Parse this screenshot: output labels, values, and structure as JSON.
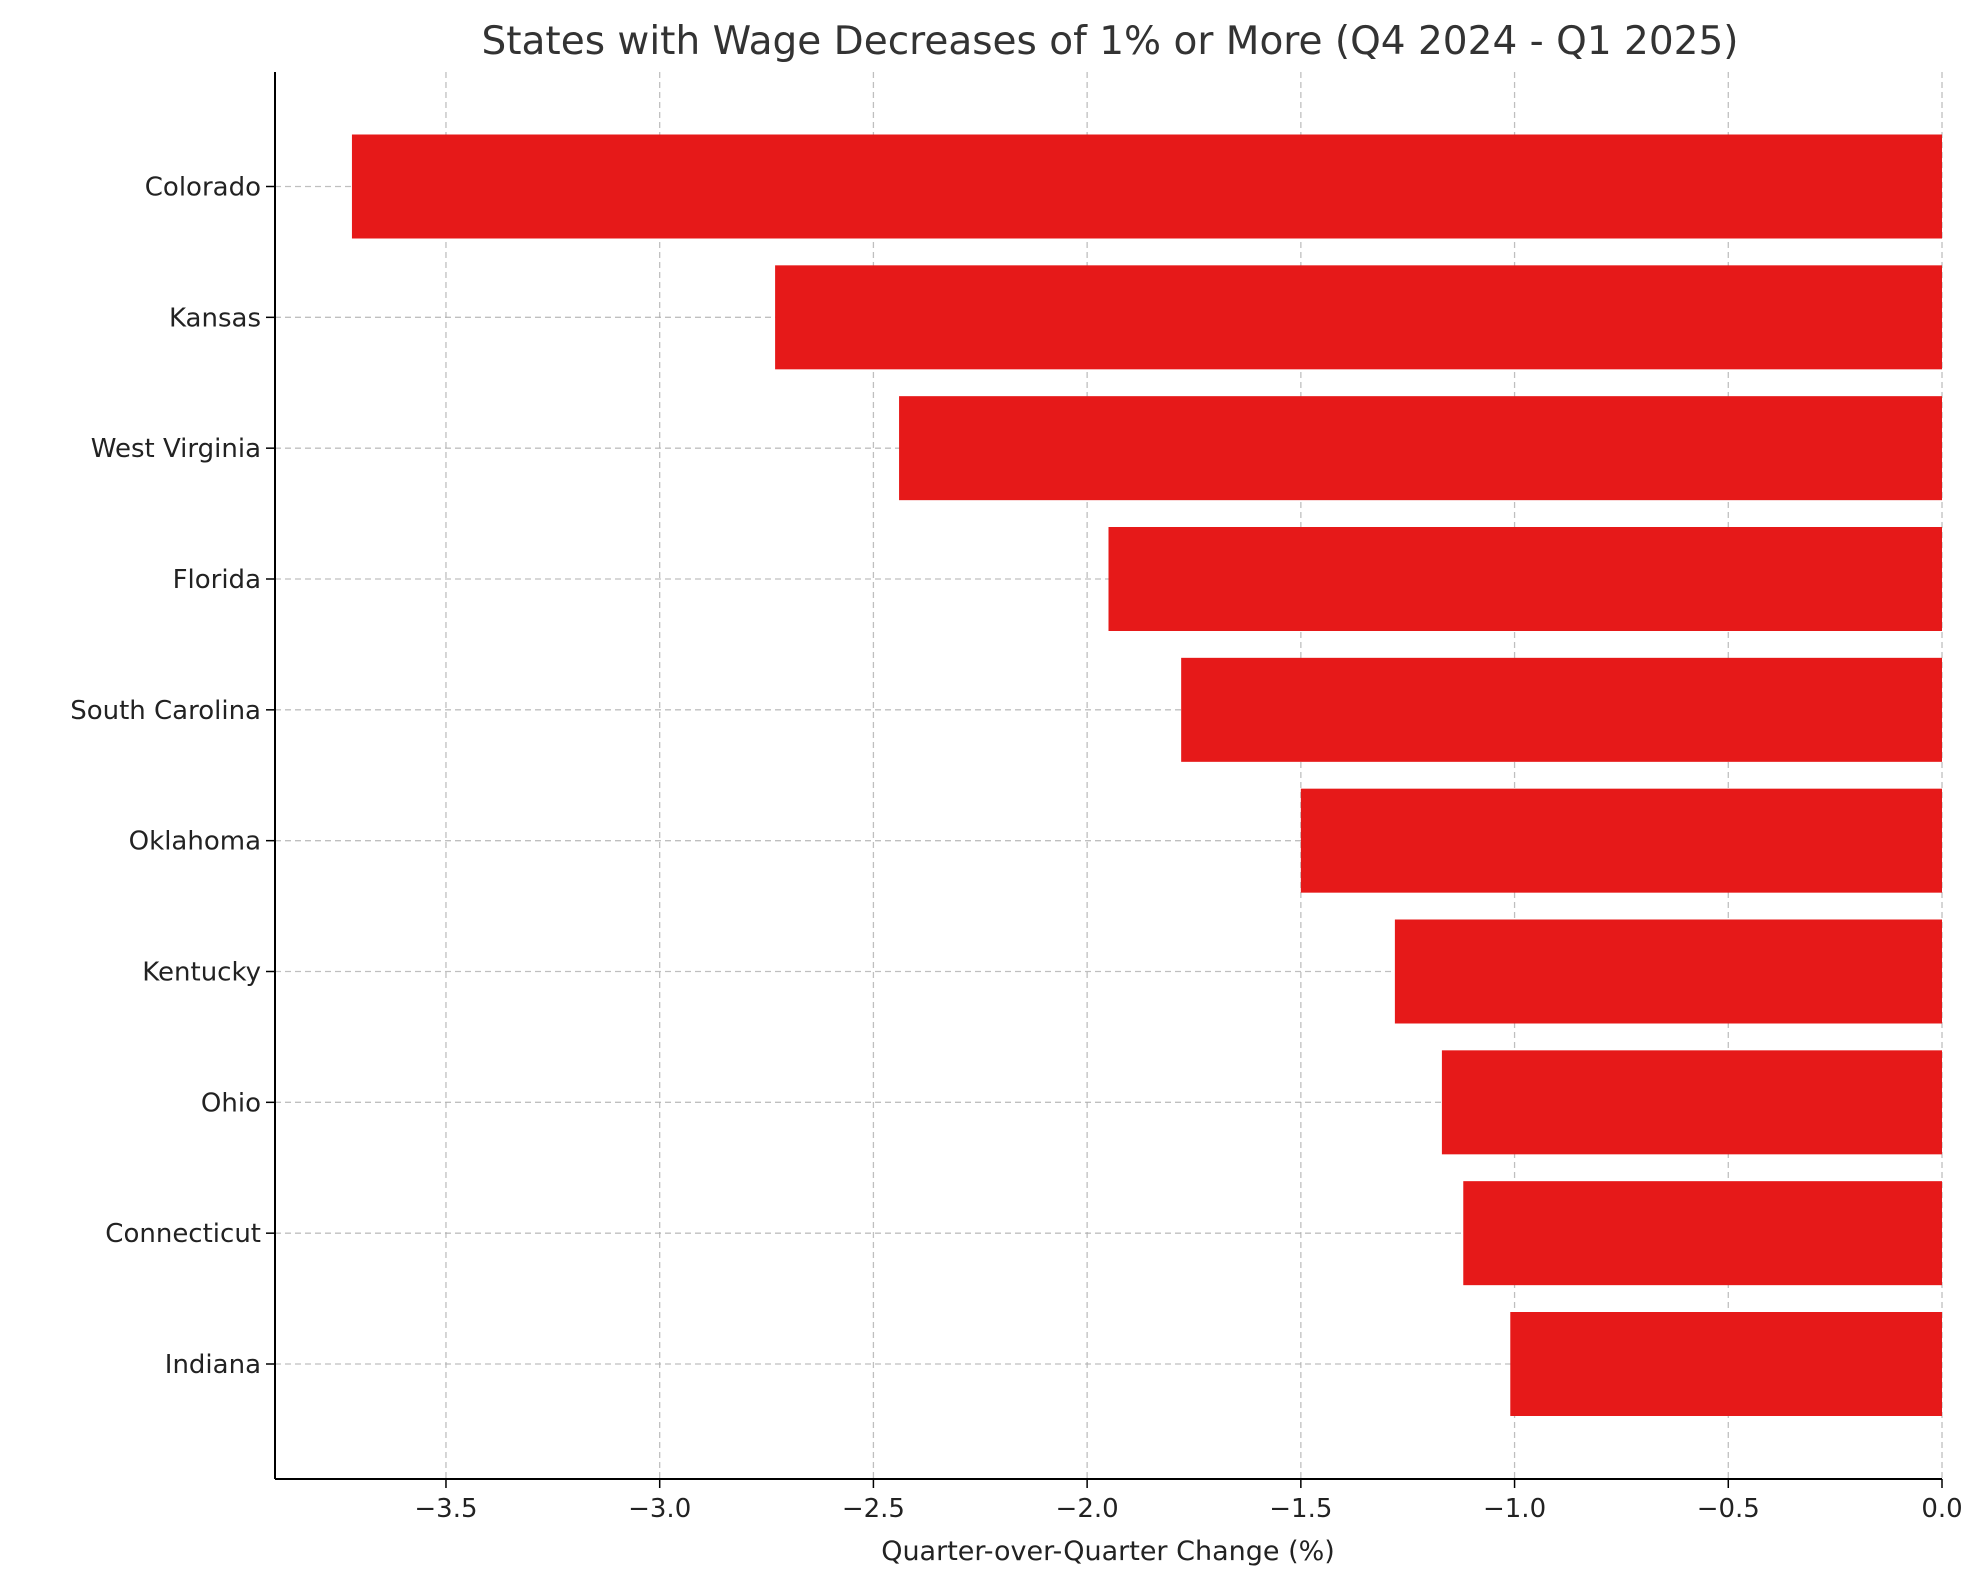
{
  "chart_data": {
    "type": "bar",
    "orientation": "horizontal",
    "title": "States with Wage Decreases of 1% or More (Q4 2024 - Q1 2025)",
    "xlabel": "Quarter-over-Quarter Change (%)",
    "ylabel": "",
    "categories": [
      "Colorado",
      "Kansas",
      "West Virginia",
      "Florida",
      "South Carolina",
      "Oklahoma",
      "Kentucky",
      "Ohio",
      "Connecticut",
      "Indiana"
    ],
    "values": [
      -3.72,
      -2.73,
      -2.44,
      -1.95,
      -1.78,
      -1.5,
      -1.28,
      -1.17,
      -1.12,
      -1.01
    ],
    "xlim": [
      -3.9,
      0
    ],
    "xticks": [
      -3.5,
      -3.0,
      -2.5,
      -2.0,
      -1.5,
      -1.0,
      -0.5,
      0.0
    ],
    "xtick_labels": [
      "−3.5",
      "−3.0",
      "−2.5",
      "−2.0",
      "−1.5",
      "−1.0",
      "−0.5",
      "0.0"
    ],
    "grid": true,
    "bar_color": "#e61919"
  }
}
